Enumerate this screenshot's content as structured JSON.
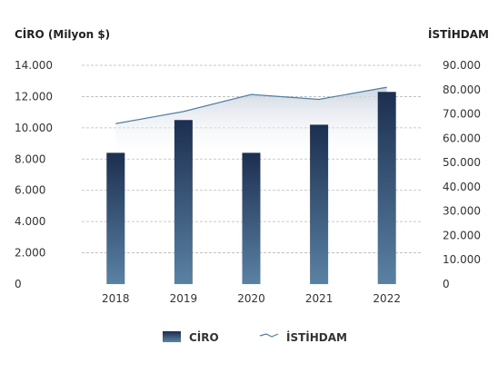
{
  "chart_data": {
    "type": "bar",
    "categories": [
      "2018",
      "2019",
      "2020",
      "2021",
      "2022"
    ],
    "series": [
      {
        "name": "CİRO",
        "type": "bar",
        "axis": "left",
        "values": [
          8400,
          10500,
          8400,
          10200,
          12300
        ]
      },
      {
        "name": "İSTİHDAM",
        "type": "area",
        "axis": "right",
        "values": [
          66000,
          71000,
          78000,
          76000,
          81000
        ]
      }
    ],
    "y_left": {
      "label": "CİRO (Milyon $)",
      "range": [
        0,
        14000
      ],
      "ticks": [
        0,
        2000,
        4000,
        6000,
        8000,
        10000,
        12000,
        14000
      ],
      "tick_labels": [
        "0",
        "2.000",
        "4.000",
        "6.000",
        "8.000",
        "10.000",
        "12.000",
        "14.000"
      ]
    },
    "y_right": {
      "label": "İSTİHDAM",
      "range": [
        0,
        90000
      ],
      "ticks": [
        0,
        10000,
        20000,
        30000,
        40000,
        50000,
        60000,
        70000,
        80000,
        90000
      ],
      "tick_labels": [
        "0",
        "10.000",
        "20.000",
        "30.000",
        "40.000",
        "50.000",
        "60.000",
        "70.000",
        "80.000",
        "90.000"
      ]
    },
    "grid": true,
    "legend_position": "bottom",
    "colors": {
      "bar_top": "#1c2f50",
      "bar_bottom": "#5a81a3",
      "line": "#4f7fa3",
      "area_top": "#c9d1dd",
      "grid": "#b8b8b8"
    }
  }
}
